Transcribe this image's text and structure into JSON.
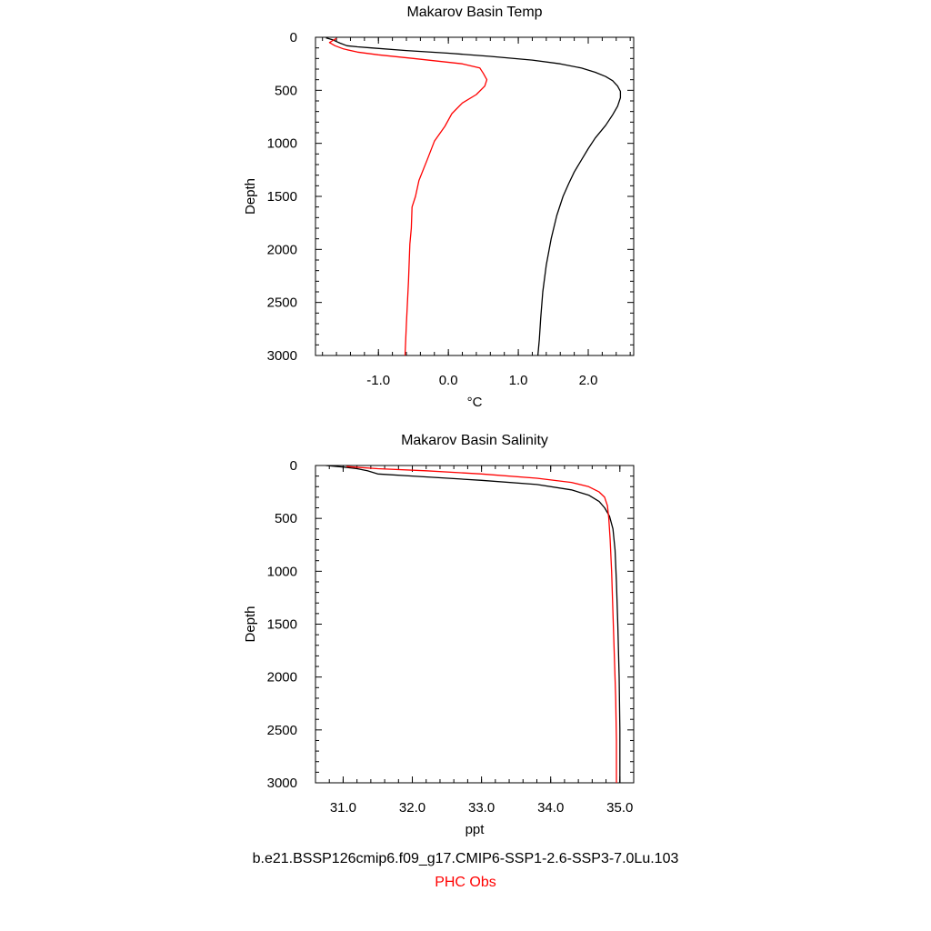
{
  "chart_data": [
    {
      "type": "line",
      "title": "Makarov Basin Temp",
      "xlabel": "°C",
      "ylabel": "Depth",
      "xlim": [
        -1.9,
        2.65
      ],
      "ylim": [
        3000,
        0
      ],
      "y_inverted": true,
      "xticks": [
        -1.0,
        0.0,
        1.0,
        2.0
      ],
      "xtick_labels": [
        "-1.0",
        "0.0",
        "1.0",
        "2.0"
      ],
      "yticks": [
        0,
        500,
        1000,
        1500,
        2000,
        2500,
        3000
      ],
      "ytick_labels": [
        "0",
        "500",
        "1000",
        "1500",
        "2000",
        "2500",
        "3000"
      ],
      "grid": false,
      "series": [
        {
          "name": "b.e21.BSSP126cmip6.f09_g17.CMIP6-SSP1-2.6-SSP3-7.0Lu.103",
          "color": "#000000",
          "x": [
            -1.75,
            -1.65,
            -1.6,
            -1.55,
            -1.45,
            -1.3,
            -1.1,
            -0.6,
            0.0,
            0.6,
            1.2,
            1.6,
            1.9,
            2.1,
            2.25,
            2.35,
            2.42,
            2.46,
            2.46,
            2.42,
            2.35,
            2.25,
            2.1,
            2.0,
            1.9,
            1.8,
            1.72,
            1.64,
            1.55,
            1.47,
            1.4,
            1.35,
            1.32,
            1.3,
            1.28
          ],
          "y": [
            5,
            25,
            40,
            55,
            80,
            90,
            100,
            125,
            150,
            180,
            215,
            250,
            290,
            330,
            370,
            410,
            460,
            510,
            570,
            650,
            730,
            830,
            950,
            1050,
            1160,
            1270,
            1380,
            1500,
            1680,
            1900,
            2150,
            2400,
            2650,
            2850,
            3000
          ]
        },
        {
          "name": "PHC Obs",
          "color": "#ff0000",
          "x": [
            -1.6,
            -1.65,
            -1.7,
            -1.62,
            -1.5,
            -1.3,
            -1.0,
            -0.5,
            0.2,
            0.45,
            0.5,
            0.55,
            0.52,
            0.4,
            0.2,
            0.05,
            -0.05,
            -0.2,
            -0.3,
            -0.42,
            -0.47,
            -0.52,
            -0.53,
            -0.55,
            -0.57,
            -0.6,
            -0.62
          ],
          "y": [
            10,
            30,
            50,
            80,
            110,
            140,
            165,
            200,
            250,
            290,
            340,
            400,
            460,
            540,
            620,
            720,
            840,
            980,
            1150,
            1350,
            1500,
            1600,
            1800,
            1950,
            2300,
            2700,
            3000
          ]
        }
      ]
    },
    {
      "type": "line",
      "title": "Makarov Basin Salinity",
      "xlabel": "ppt",
      "ylabel": "Depth",
      "xlim": [
        30.6,
        35.2
      ],
      "ylim": [
        3000,
        0
      ],
      "y_inverted": true,
      "xticks": [
        31.0,
        32.0,
        33.0,
        34.0,
        35.0
      ],
      "xtick_labels": [
        "31.0",
        "32.0",
        "33.0",
        "34.0",
        "35.0"
      ],
      "yticks": [
        0,
        500,
        1000,
        1500,
        2000,
        2500,
        3000
      ],
      "ytick_labels": [
        "0",
        "500",
        "1000",
        "1500",
        "2000",
        "2500",
        "3000"
      ],
      "grid": false,
      "series": [
        {
          "name": "b.e21.BSSP126cmip6.f09_g17.CMIP6-SSP1-2.6-SSP3-7.0Lu.103",
          "color": "#000000",
          "x": [
            30.75,
            31.0,
            31.2,
            31.35,
            31.5,
            32.0,
            33.0,
            33.8,
            34.3,
            34.55,
            34.7,
            34.78,
            34.85,
            34.9,
            34.93,
            34.95,
            34.97,
            34.99,
            35.0,
            35.0
          ],
          "y": [
            0,
            15,
            30,
            50,
            80,
            100,
            140,
            180,
            230,
            280,
            340,
            400,
            480,
            600,
            800,
            1100,
            1500,
            2000,
            2500,
            3000
          ]
        },
        {
          "name": "PHC Obs",
          "color": "#ff0000",
          "x": [
            31.05,
            31.5,
            32.2,
            33.0,
            33.8,
            34.3,
            34.55,
            34.7,
            34.78,
            34.82,
            34.84,
            34.86,
            34.88,
            34.9,
            34.92,
            34.94,
            34.95,
            34.95
          ],
          "y": [
            10,
            30,
            50,
            80,
            120,
            160,
            200,
            250,
            300,
            380,
            500,
            700,
            1000,
            1400,
            1800,
            2200,
            2600,
            3000
          ]
        }
      ]
    }
  ],
  "legend": {
    "model_label": "b.e21.BSSP126cmip6.f09_g17.CMIP6-SSP1-2.6-SSP3-7.0Lu.103",
    "obs_label": "PHC Obs",
    "model_color": "#000000",
    "obs_color": "#ff0000"
  }
}
